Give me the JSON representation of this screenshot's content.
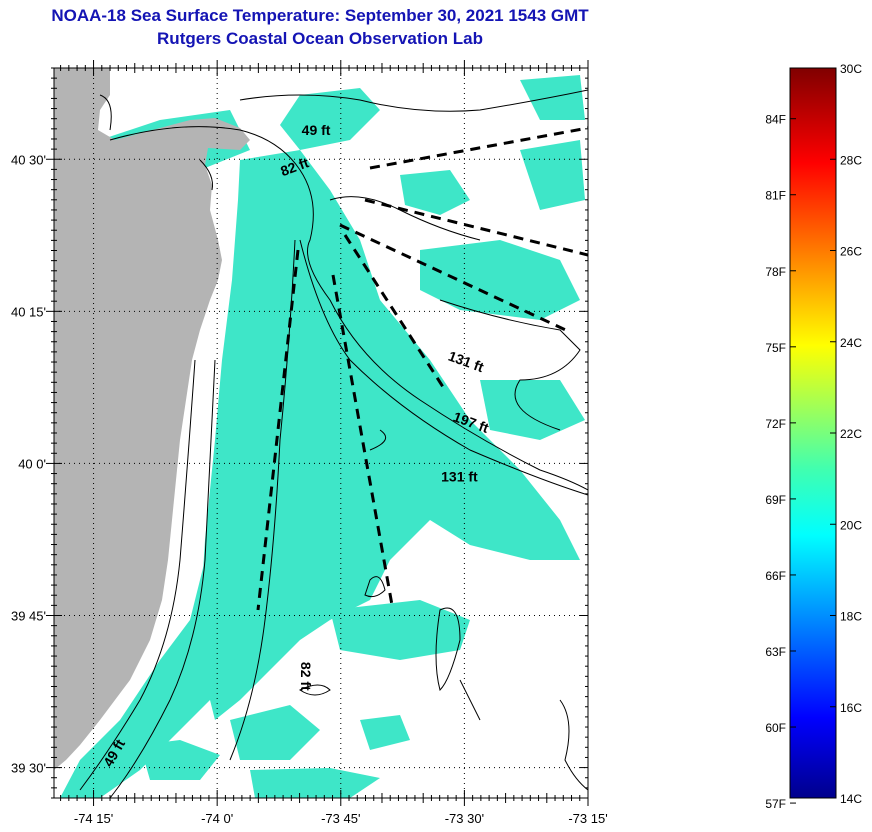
{
  "title": "NOAA-18 Sea Surface Temperature:  September 30, 2021 1543 GMT",
  "subtitle": "Rutgers Coastal Ocean Observation Lab",
  "map": {
    "lon_range": [
      -74.33,
      -73.25
    ],
    "lat_range": [
      39.45,
      40.65
    ],
    "lat_ticks": [
      {
        "label": "40 30'",
        "value": 40.5
      },
      {
        "label": "40 15'",
        "value": 40.25
      },
      {
        "label": "40 0'",
        "value": 40.0
      },
      {
        "label": "39 45'",
        "value": 39.75
      },
      {
        "label": "39 30'",
        "value": 39.5
      }
    ],
    "lon_ticks": [
      {
        "label": "-74 15'",
        "value": -74.25
      },
      {
        "label": "-74 0'",
        "value": -74.0
      },
      {
        "label": "-73 45'",
        "value": -73.75
      },
      {
        "label": "-73 30'",
        "value": -73.5
      },
      {
        "label": "-73 15'",
        "value": -73.25
      }
    ],
    "depth_labels": [
      {
        "text": "49 ft",
        "lon": -73.8,
        "lat": 40.54,
        "rotate": 0
      },
      {
        "text": "82 ft",
        "lon": -73.84,
        "lat": 40.48,
        "rotate": -20
      },
      {
        "text": "131 ft",
        "lon": -73.5,
        "lat": 40.16,
        "rotate": 20
      },
      {
        "text": "197 ft",
        "lon": -73.49,
        "lat": 40.06,
        "rotate": 20
      },
      {
        "text": "131 ft",
        "lon": -73.51,
        "lat": 39.97,
        "rotate": 0
      },
      {
        "text": "82 ft",
        "lon": -73.83,
        "lat": 39.65,
        "rotate": 90
      },
      {
        "text": "49 ft",
        "lon": -74.2,
        "lat": 39.52,
        "rotate": -60
      }
    ],
    "land_color": "#b4b4b4",
    "water_color": "#3ee6c8"
  },
  "colorbar": {
    "c_ticks": [
      "30C",
      "28C",
      "26C",
      "24C",
      "22C",
      "20C",
      "18C",
      "16C",
      "14C"
    ],
    "f_ticks": [
      "84F",
      "81F",
      "78F",
      "75F",
      "72F",
      "69F",
      "66F",
      "63F",
      "60F",
      "57F"
    ],
    "c_range": [
      14,
      30
    ]
  }
}
